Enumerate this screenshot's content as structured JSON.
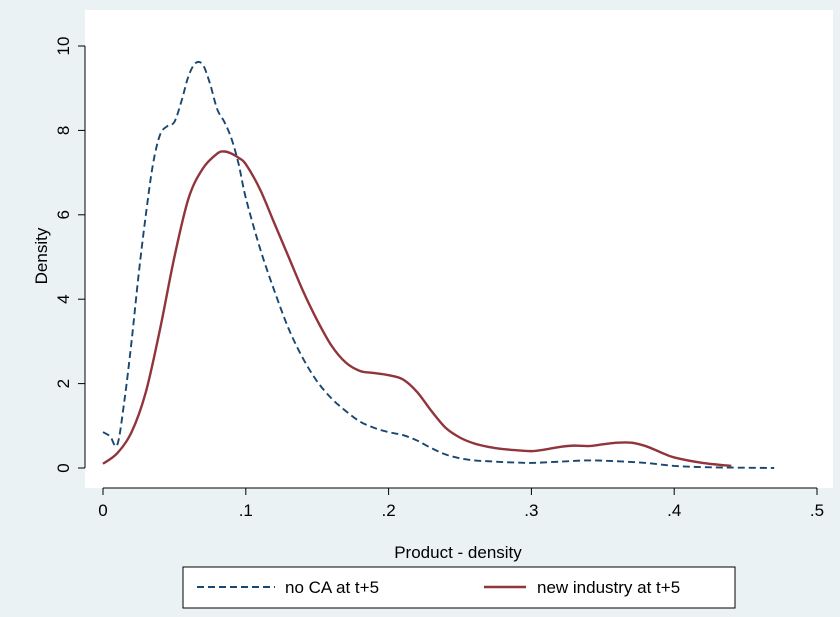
{
  "chart_data": {
    "type": "line",
    "title": "",
    "xlabel": "Product - density",
    "ylabel": "Density",
    "xlim": [
      0,
      0.5
    ],
    "ylim": [
      0,
      10
    ],
    "x_ticks": [
      {
        "value": 0,
        "label": "0"
      },
      {
        "value": 0.1,
        "label": ".1"
      },
      {
        "value": 0.2,
        "label": ".2"
      },
      {
        "value": 0.3,
        "label": ".3"
      },
      {
        "value": 0.4,
        "label": ".4"
      },
      {
        "value": 0.5,
        "label": ".5"
      }
    ],
    "y_ticks": [
      {
        "value": 0,
        "label": "0"
      },
      {
        "value": 2,
        "label": "2"
      },
      {
        "value": 4,
        "label": "4"
      },
      {
        "value": 6,
        "label": "6"
      },
      {
        "value": 8,
        "label": "8"
      },
      {
        "value": 10,
        "label": "10"
      }
    ],
    "grid": false,
    "legend_position": "bottom",
    "series": [
      {
        "name": "no CA at t+5",
        "color": "#1a476f",
        "dash": "dashed",
        "x": [
          0,
          0.005,
          0.01,
          0.015,
          0.02,
          0.025,
          0.03,
          0.035,
          0.04,
          0.045,
          0.05,
          0.055,
          0.06,
          0.065,
          0.07,
          0.075,
          0.08,
          0.085,
          0.09,
          0.095,
          0.1,
          0.11,
          0.12,
          0.13,
          0.14,
          0.15,
          0.16,
          0.17,
          0.18,
          0.19,
          0.2,
          0.21,
          0.22,
          0.23,
          0.24,
          0.25,
          0.26,
          0.27,
          0.28,
          0.29,
          0.3,
          0.32,
          0.34,
          0.36,
          0.38,
          0.4,
          0.42,
          0.44,
          0.47
        ],
        "y": [
          0.85,
          0.75,
          0.55,
          1.6,
          3.0,
          4.6,
          6.0,
          7.2,
          7.9,
          8.1,
          8.2,
          8.7,
          9.3,
          9.6,
          9.55,
          9.1,
          8.5,
          8.2,
          7.8,
          7.2,
          6.4,
          5.2,
          4.2,
          3.3,
          2.6,
          2.05,
          1.65,
          1.35,
          1.1,
          0.95,
          0.85,
          0.78,
          0.65,
          0.47,
          0.32,
          0.23,
          0.18,
          0.16,
          0.14,
          0.13,
          0.12,
          0.15,
          0.18,
          0.16,
          0.12,
          0.05,
          0.02,
          0.01,
          0.0
        ]
      },
      {
        "name": "new industry at t+5",
        "color": "#90353b",
        "dash": "solid",
        "x": [
          0,
          0.01,
          0.02,
          0.03,
          0.04,
          0.05,
          0.06,
          0.07,
          0.08,
          0.085,
          0.09,
          0.095,
          0.1,
          0.11,
          0.12,
          0.13,
          0.14,
          0.15,
          0.16,
          0.17,
          0.18,
          0.19,
          0.2,
          0.21,
          0.22,
          0.23,
          0.24,
          0.25,
          0.26,
          0.27,
          0.28,
          0.29,
          0.3,
          0.31,
          0.32,
          0.33,
          0.34,
          0.35,
          0.36,
          0.37,
          0.38,
          0.39,
          0.4,
          0.42,
          0.44
        ],
        "y": [
          0.1,
          0.35,
          0.85,
          1.8,
          3.3,
          5.0,
          6.4,
          7.1,
          7.45,
          7.5,
          7.45,
          7.35,
          7.2,
          6.6,
          5.8,
          5.0,
          4.2,
          3.5,
          2.9,
          2.5,
          2.3,
          2.25,
          2.2,
          2.1,
          1.8,
          1.35,
          0.95,
          0.72,
          0.58,
          0.5,
          0.45,
          0.42,
          0.4,
          0.44,
          0.5,
          0.53,
          0.52,
          0.56,
          0.6,
          0.6,
          0.52,
          0.38,
          0.25,
          0.12,
          0.05
        ]
      }
    ]
  }
}
